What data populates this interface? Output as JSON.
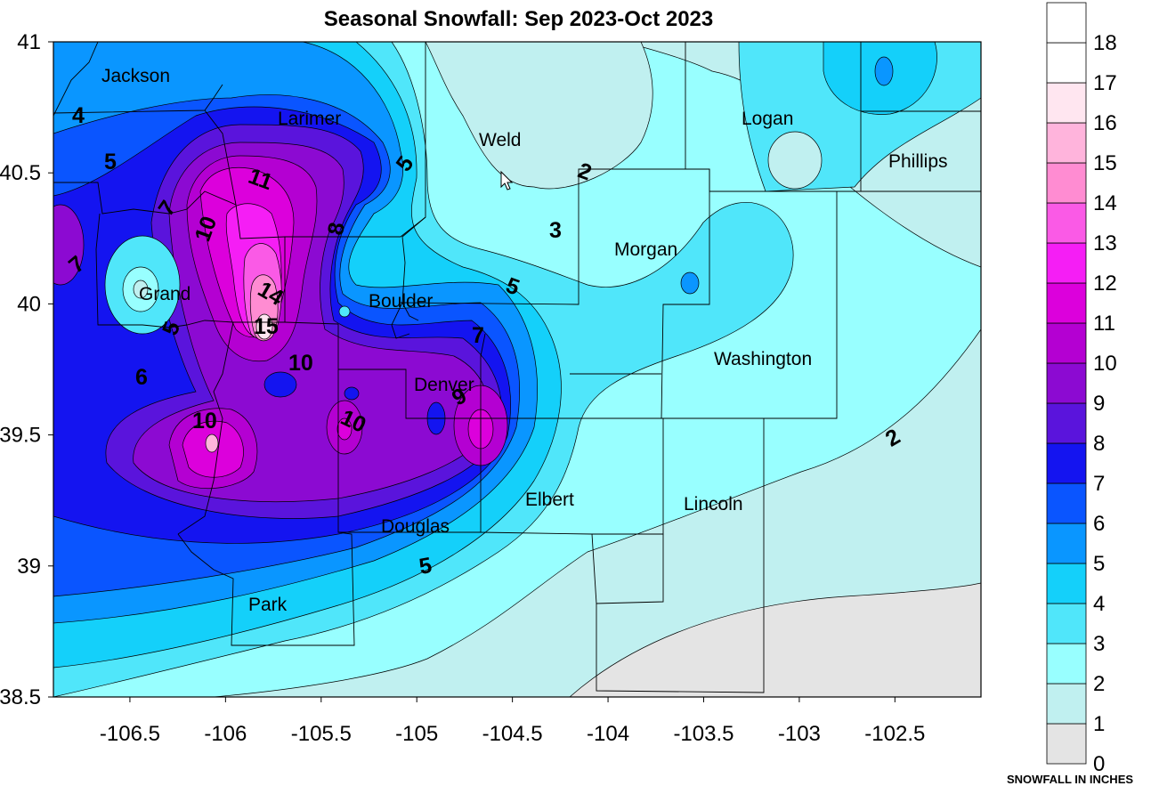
{
  "title": "Seasonal Snowfall: Sep 2023-Oct 2023",
  "axes": {
    "x_ticks": [
      "-106.5",
      "-106",
      "-105.5",
      "-105",
      "-104.5",
      "-104",
      "-103.5",
      "-103",
      "-102.5"
    ],
    "y_ticks": [
      "41",
      "40.5",
      "40",
      "39.5",
      "39",
      "38.5"
    ],
    "x_range": [
      -106.9,
      -102.05
    ],
    "y_range": [
      38.5,
      41.0
    ]
  },
  "counties": [
    "Jackson",
    "Larimer",
    "Weld",
    "Logan",
    "Phillips",
    "Morgan",
    "Grand",
    "Boulder",
    "Washington",
    "Denver",
    "Elbert",
    "Lincoln",
    "Douglas",
    "Park"
  ],
  "contour_labels": [
    "4",
    "5",
    "7",
    "10",
    "11",
    "8",
    "5",
    "2",
    "3",
    "7",
    "14",
    "15",
    "5",
    "6",
    "10",
    "10",
    "10",
    "7",
    "9",
    "5",
    "5",
    "2"
  ],
  "legend": {
    "levels": [
      "0",
      "1",
      "2",
      "3",
      "4",
      "5",
      "6",
      "7",
      "8",
      "9",
      "10",
      "11",
      "12",
      "13",
      "14",
      "15",
      "16",
      "17",
      "18"
    ],
    "colors": [
      "#e4e4e4",
      "#c0f0f0",
      "#98ffff",
      "#50e6fa",
      "#14d0fa",
      "#0a96ff",
      "#0a55ff",
      "#1414f0",
      "#5a14dc",
      "#8c0ad2",
      "#b400d2",
      "#dc00dc",
      "#f51ef5",
      "#fa5ae6",
      "#ff8cd2",
      "#ffb4dc",
      "#ffe6f0",
      "#ffffff",
      "#ffffff"
    ],
    "caption": "SNOWFALL IN INCHES"
  }
}
